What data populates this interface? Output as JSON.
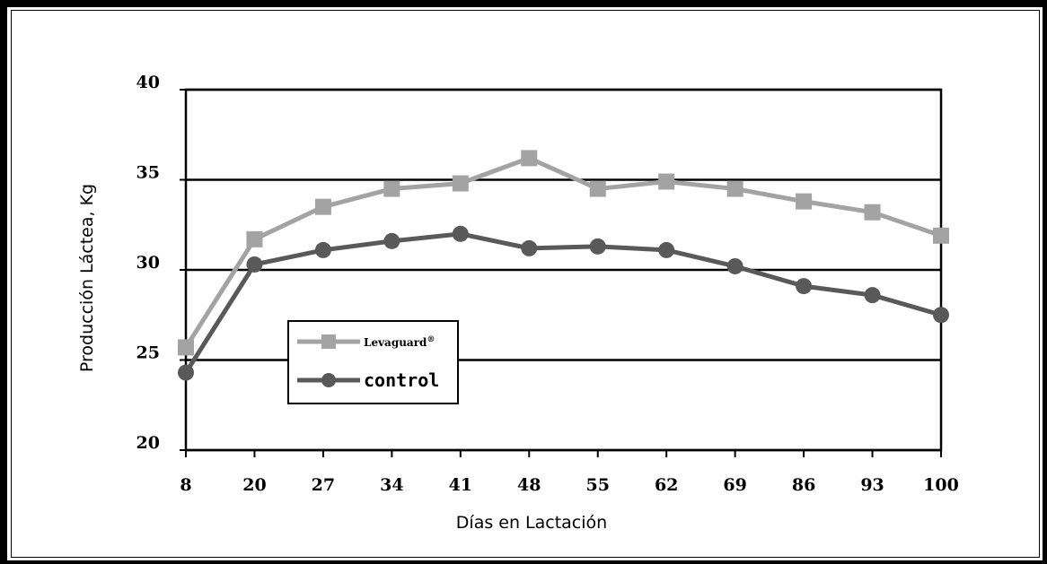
{
  "chart_data": {
    "type": "line",
    "title": "",
    "xlabel": "Días en Lactación",
    "ylabel": "Producción Láctea, Kg",
    "categories": [
      "8",
      "20",
      "27",
      "34",
      "41",
      "48",
      "55",
      "62",
      "69",
      "86",
      "93",
      "100"
    ],
    "ylim": [
      20,
      40
    ],
    "yticks": [
      "20",
      "25",
      "30",
      "35",
      "40"
    ],
    "grid": "horizontal",
    "legend_position": "center-left",
    "series": [
      {
        "name": "Levaguard",
        "name_sup": "®",
        "marker": "square",
        "color": "#a3a3a3",
        "values": [
          25.7,
          31.7,
          33.5,
          34.5,
          34.8,
          36.2,
          34.5,
          34.9,
          34.5,
          33.8,
          33.2,
          31.9
        ]
      },
      {
        "name": "control",
        "marker": "circle",
        "color": "#595959",
        "values": [
          24.3,
          30.3,
          31.1,
          31.6,
          32.0,
          31.2,
          31.3,
          31.1,
          30.2,
          29.1,
          28.6,
          27.5
        ]
      }
    ]
  }
}
